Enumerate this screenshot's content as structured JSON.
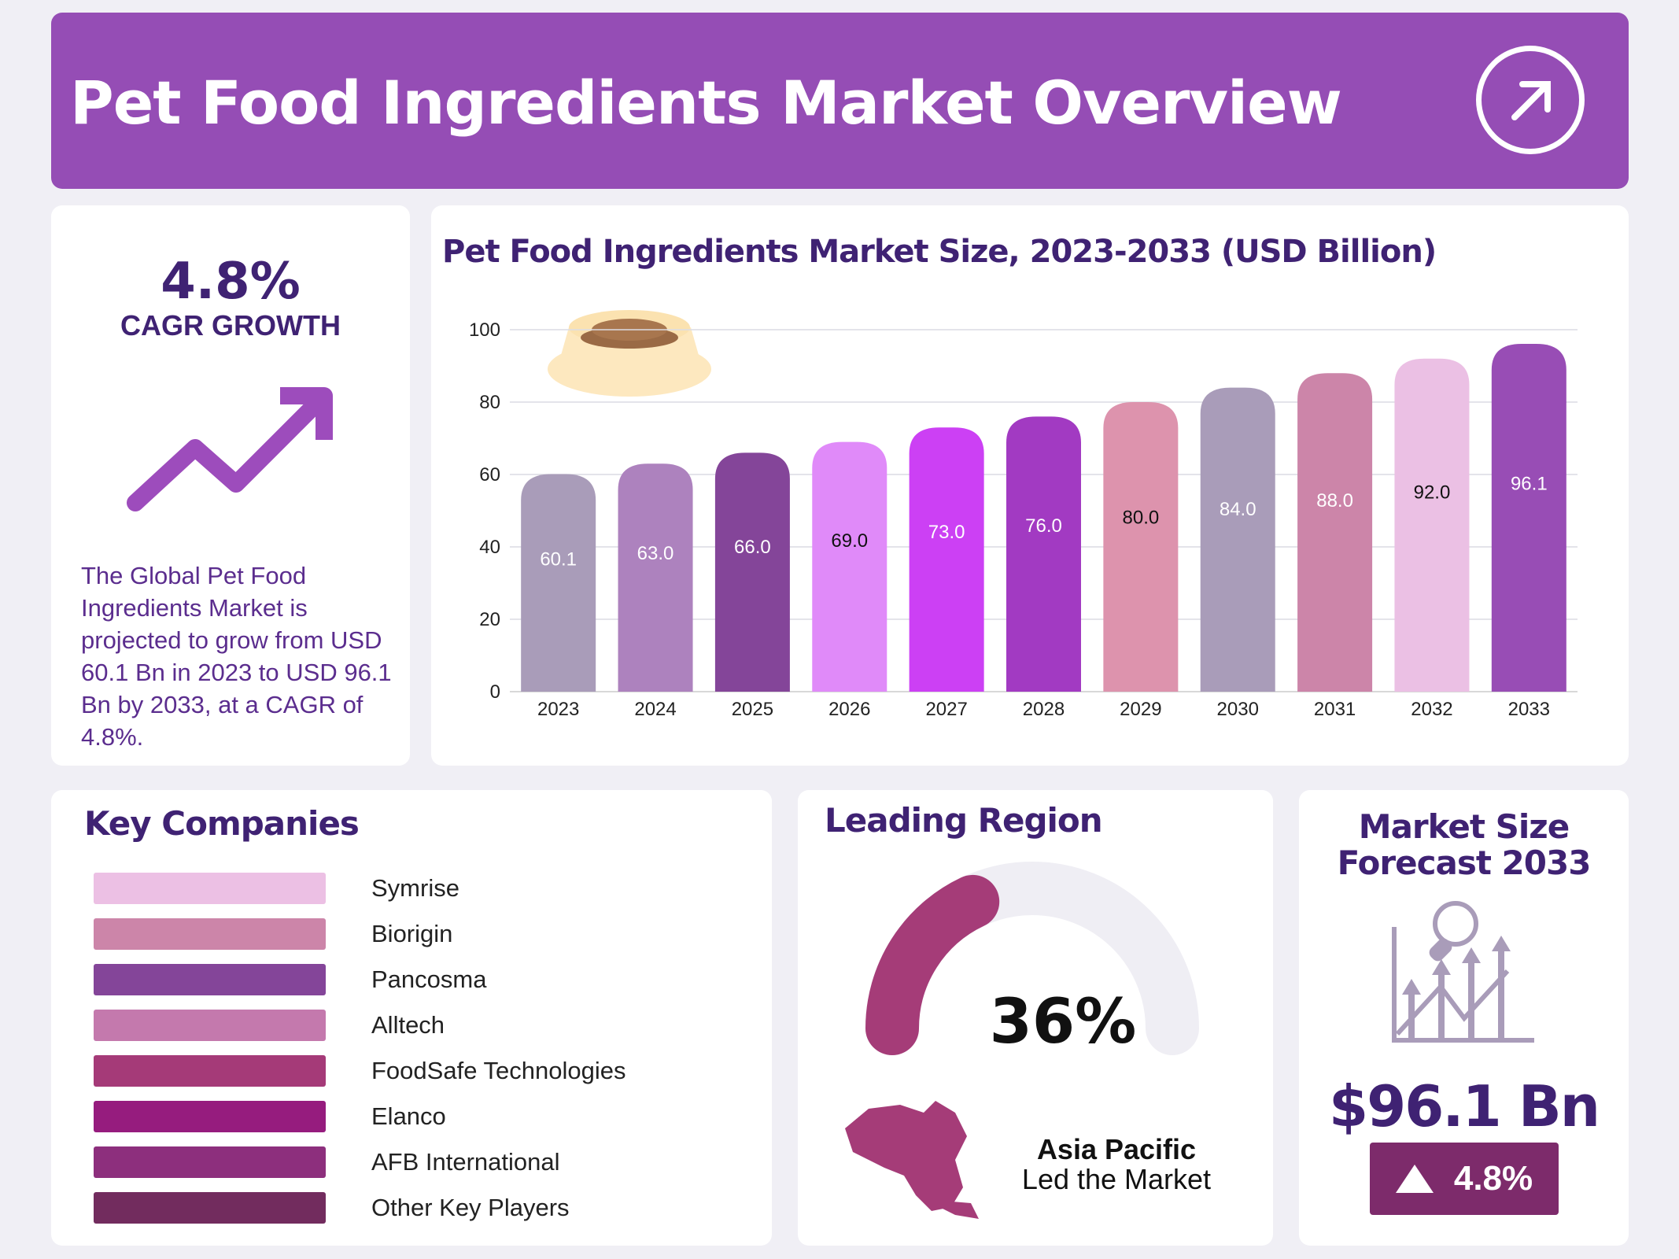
{
  "header": {
    "title": "Pet Food Ingredients Market Overview",
    "icon": "arrow-up-right-icon"
  },
  "cagr": {
    "value": "4.8%",
    "label": "CAGR GROWTH",
    "icon": "trend-up-arrow-icon",
    "description": "The Global Pet Food Ingredients Market is projected to grow from USD 60.1 Bn in 2023 to USD 96.1 Bn by 2033, at a CAGR of 4.8%."
  },
  "chart_data": {
    "type": "bar",
    "title": "Pet Food Ingredients Market Size, 2023-2033 (USD Billion)",
    "categories": [
      "2023",
      "2024",
      "2025",
      "2026",
      "2027",
      "2028",
      "2029",
      "2030",
      "2031",
      "2032",
      "2033"
    ],
    "values": [
      60.1,
      63.0,
      66.0,
      69.0,
      73.0,
      76.0,
      80.0,
      84.0,
      88.0,
      92.0,
      96.1
    ],
    "data_labels": [
      "60.1",
      "63.0",
      "66.0",
      "69.0",
      "73.0",
      "76.0",
      "80.0",
      "84.0",
      "88.0",
      "92.0",
      "96.1"
    ],
    "colors": [
      "#a99cb9",
      "#ad82be",
      "#844599",
      "#e08af9",
      "#cc40f4",
      "#a23ac2",
      "#dd93ad",
      "#a99cb9",
      "#cc85a9",
      "#ebc0e4",
      "#984db5"
    ],
    "label_colors": [
      "#ffffff",
      "#ffffff",
      "#ffffff",
      "#111111",
      "#ffffff",
      "#ffffff",
      "#111111",
      "#ffffff",
      "#ffffff",
      "#111111",
      "#ffffff"
    ],
    "ylim": [
      0,
      100
    ],
    "yticks": [
      "0",
      "20",
      "40",
      "60",
      "80",
      "100"
    ],
    "grid": true,
    "xlabel": "",
    "ylabel": ""
  },
  "companies": {
    "title": "Key Companies",
    "items": [
      {
        "name": "Symrise",
        "color": "#ecc0e4"
      },
      {
        "name": "Biorigin",
        "color": "#cc85a9"
      },
      {
        "name": "Pancosma",
        "color": "#844599"
      },
      {
        "name": "Alltech",
        "color": "#c479ad"
      },
      {
        "name": "FoodSafe Technologies",
        "color": "#a53a78"
      },
      {
        "name": "Elanco",
        "color": "#961c7e"
      },
      {
        "name": "AFB International",
        "color": "#8d2f7d"
      },
      {
        "name": "Other Key Players",
        "color": "#722c5e"
      }
    ]
  },
  "region": {
    "title": "Leading Region",
    "share": "36%",
    "share_value": 36,
    "name": "Asia Pacific",
    "subtitle": "Led the Market",
    "gauge_color": "#a53c78",
    "track_color": "#efeef4"
  },
  "forecast": {
    "title_line1": "Market Size",
    "title_line2": "Forecast 2033",
    "value": "$96.1 Bn",
    "growth": "4.8%",
    "icon": "chart-magnifier-growth-icon"
  }
}
